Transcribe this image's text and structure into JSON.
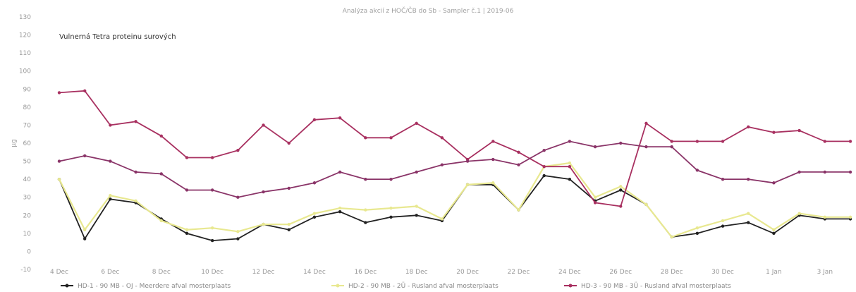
{
  "chart_data": {
    "type": "line",
    "title": "Analýza akcií z HOČ/ČB do Sb - Sampler č.1 | 2019-06",
    "subtitle": "Vulnerná Tetra proteinu surových",
    "ylabel": "μg",
    "xlabel": "",
    "ylim": [
      -10,
      130
    ],
    "yticks": [
      -10,
      0,
      10,
      20,
      30,
      40,
      50,
      60,
      70,
      80,
      90,
      100,
      110,
      120,
      130
    ],
    "categories": [
      "4 Dec",
      "5 Dec",
      "6 Dec",
      "7 Dec",
      "8 Dec",
      "9 Dec",
      "10 Dec",
      "11 Dec",
      "12 Dec",
      "13 Dec",
      "14 Dec",
      "15 Dec",
      "16 Dec",
      "17 Dec",
      "18 Dec",
      "19 Dec",
      "20 Dec",
      "21 Dec",
      "22 Dec",
      "23 Dec",
      "24 Dec",
      "25 Dec",
      "26 Dec",
      "27 Dec",
      "28 Dec",
      "29 Dec",
      "30 Dec",
      "31 Dec",
      "1 Jan",
      "2 Jan",
      "3 Jan",
      "4 Jan"
    ],
    "xtick_labels": [
      "4 Dec",
      "6 Dec",
      "8 Dec",
      "10 Dec",
      "12 Dec",
      "14 Dec",
      "16 Dec",
      "18 Dec",
      "20 Dec",
      "22 Dec",
      "24 Dec",
      "26 Dec",
      "28 Dec",
      "30 Dec",
      "1 Jan",
      "3 Jan"
    ],
    "series": [
      {
        "name": "HD-1 - 90 MB - OJ - Meerdere afval mosterplaats",
        "color": "#222222",
        "values": [
          40,
          7,
          29,
          27,
          18,
          10,
          6,
          7,
          15,
          12,
          19,
          22,
          16,
          19,
          20,
          17,
          37,
          37,
          23,
          42,
          40,
          28,
          34,
          26,
          8,
          10,
          14,
          16,
          10,
          20,
          18,
          18
        ]
      },
      {
        "name": "HD-2 - 90 MB - 2Ü - Rusland afval mosterplaats",
        "color": "#e8e890",
        "values": [
          40,
          12,
          31,
          28,
          17,
          12,
          13,
          11,
          15,
          15,
          21,
          24,
          23,
          24,
          25,
          18,
          37,
          38,
          23,
          47,
          49,
          30,
          36,
          26,
          8,
          13,
          17,
          21,
          12,
          21,
          19,
          19
        ]
      },
      {
        "name": "HD-3 - 90 MB - 3Ü - Rusland afval mosterplaats",
        "color": "#a83060",
        "values": [
          88,
          89,
          70,
          72,
          64,
          52,
          52,
          56,
          70,
          60,
          73,
          74,
          63,
          63,
          71,
          63,
          51,
          61,
          55,
          47,
          47,
          27,
          25,
          71,
          61,
          61,
          61,
          69,
          66,
          67,
          61,
          61
        ]
      },
      {
        "name": "",
        "color": "#8a3468",
        "values": [
          50,
          53,
          50,
          44,
          43,
          34,
          34,
          30,
          33,
          35,
          38,
          44,
          40,
          40,
          44,
          48,
          50,
          51,
          48,
          56,
          61,
          58,
          60,
          58,
          58,
          45,
          40,
          40,
          38,
          44,
          44,
          44
        ]
      }
    ],
    "grid": false,
    "legend": "bottom"
  }
}
